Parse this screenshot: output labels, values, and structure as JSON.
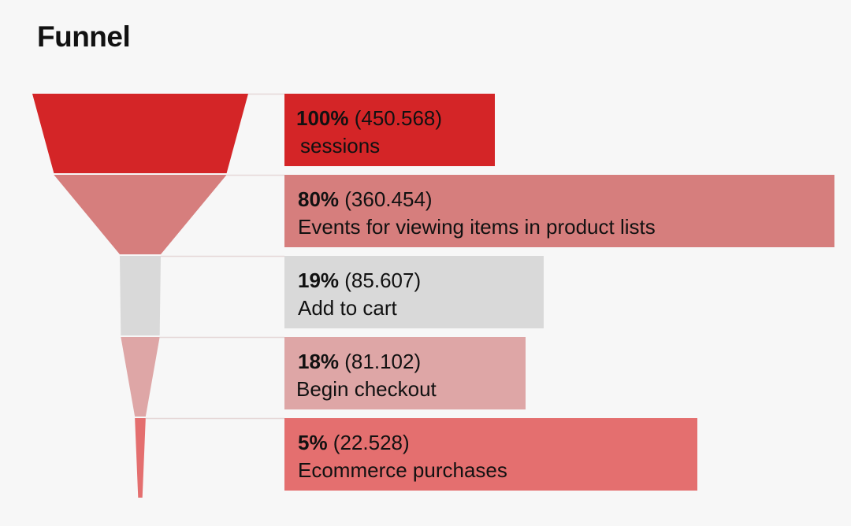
{
  "title": "Funnel",
  "chart_data": {
    "type": "funnel",
    "stages": [
      {
        "label": "sessions",
        "percent": 100,
        "percent_label": "100%",
        "value": 450568,
        "value_label": "(450.568)",
        "color": "#d42527"
      },
      {
        "label": "Events for viewing items in product lists",
        "percent": 80,
        "percent_label": "80%",
        "value": 360454,
        "value_label": "(360.454)",
        "color": "#d67e7d"
      },
      {
        "label": "Add to cart",
        "percent": 19,
        "percent_label": "19%",
        "value": 85607,
        "value_label": "(85.607)",
        "color": "#d9d9d9"
      },
      {
        "label": "Begin checkout",
        "percent": 18,
        "percent_label": "18%",
        "value": 81102,
        "value_label": "(81.102)",
        "color": "#dea6a6"
      },
      {
        "label": "Ecommerce purchases",
        "percent": 5,
        "percent_label": "5%",
        "value": 22528,
        "value_label": "(22.528)",
        "color": "#e46f6f"
      }
    ]
  }
}
